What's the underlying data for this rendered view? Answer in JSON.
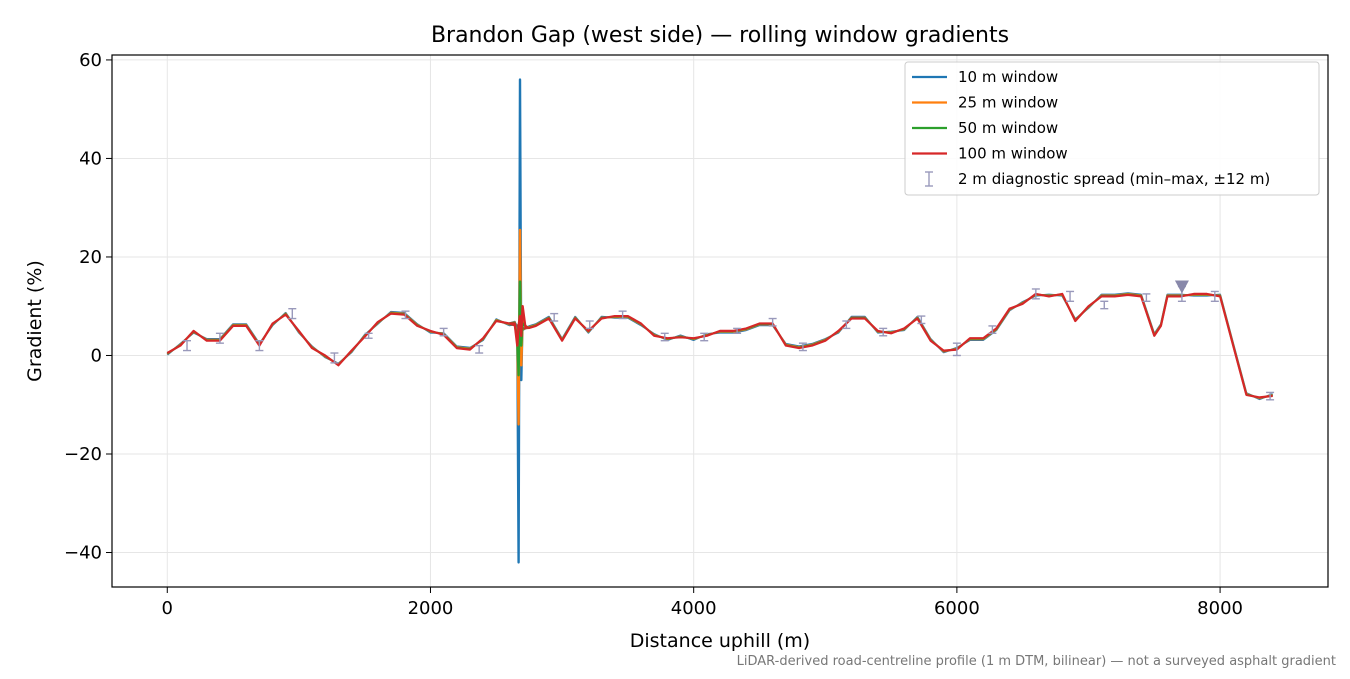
{
  "chart_data": {
    "type": "line",
    "title": "Brandon Gap (west side) — rolling window gradients",
    "xlabel": "Distance uphill (m)",
    "ylabel": "Gradient (%)",
    "xlim": [
      -420,
      8820
    ],
    "ylim": [
      -47,
      61
    ],
    "xticks": [
      0,
      2000,
      4000,
      6000,
      8000
    ],
    "yticks": [
      -40,
      -20,
      0,
      20,
      40,
      60
    ],
    "grid": true,
    "legend_position": "top-right",
    "footnote": "LiDAR-derived road-centreline profile (1 m DTM, bilinear) — not a surveyed asphalt gradient",
    "profile": {
      "x": [
        0,
        100,
        200,
        300,
        400,
        500,
        600,
        700,
        800,
        900,
        1000,
        1100,
        1200,
        1300,
        1400,
        1500,
        1600,
        1700,
        1800,
        1900,
        2000,
        2100,
        2200,
        2300,
        2400,
        2500,
        2600,
        2650,
        2700,
        2750,
        2800,
        2900,
        3000,
        3100,
        3200,
        3300,
        3400,
        3500,
        3600,
        3700,
        3800,
        3900,
        4000,
        4100,
        4200,
        4300,
        4400,
        4500,
        4600,
        4700,
        4800,
        4900,
        5000,
        5100,
        5200,
        5300,
        5400,
        5500,
        5600,
        5700,
        5800,
        5900,
        6000,
        6100,
        6200,
        6300,
        6400,
        6500,
        6600,
        6700,
        6800,
        6900,
        7000,
        7100,
        7200,
        7300,
        7400,
        7500,
        7550,
        7600,
        7700,
        7800,
        7900,
        8000,
        8100,
        8200,
        8300,
        8400
      ],
      "y": [
        0.5,
        2,
        5,
        3,
        3,
        6,
        6,
        2,
        6.5,
        8.3,
        5,
        1.5,
        0,
        -2,
        1,
        3.8,
        6.8,
        8.5,
        8.3,
        6,
        5,
        4.2,
        1.5,
        1.2,
        3.5,
        7,
        6.5,
        6,
        5.5,
        5.6,
        6,
        7.5,
        3,
        7.5,
        5,
        7.5,
        8,
        8,
        6.5,
        4,
        3.5,
        3.7,
        3.5,
        4,
        5,
        5,
        5.5,
        6.5,
        6.5,
        2,
        1.5,
        2,
        3,
        5,
        7.5,
        7.5,
        5,
        4.5,
        5.5,
        7.5,
        3,
        1,
        1.2,
        3.5,
        3.5,
        5.5,
        9.5,
        10.5,
        12.5,
        12,
        12.5,
        7,
        10,
        12,
        12,
        12.3,
        12,
        4,
        6,
        12,
        12,
        12.5,
        12.5,
        12,
        2,
        -8,
        -8.5,
        -8.2
      ]
    },
    "spike": {
      "x": [
        2600,
        2640,
        2660,
        2670,
        2680,
        2690,
        2700,
        2720,
        2740
      ],
      "series": [
        {
          "name": "10 m window",
          "values": [
            6.5,
            6.8,
            5,
            -42,
            56,
            -5,
            8,
            6,
            5.6
          ]
        },
        {
          "name": "25 m window",
          "values": [
            6.5,
            6.7,
            4,
            -14,
            25.5,
            -2,
            7,
            6,
            5.6
          ]
        },
        {
          "name": "50 m window",
          "values": [
            6.5,
            6.6,
            3,
            -4,
            15,
            2,
            6.5,
            6,
            5.6
          ]
        },
        {
          "name": "100 m window",
          "values": [
            6.5,
            6.5,
            2,
            6,
            8,
            4,
            10,
            6,
            5.6
          ]
        }
      ]
    },
    "series_styles": [
      {
        "name": "10 m window",
        "color": "#1f77b4"
      },
      {
        "name": "25 m window",
        "color": "#ff7f0e"
      },
      {
        "name": "50 m window",
        "color": "#2ca02c"
      },
      {
        "name": "100 m window",
        "color": "#d62728"
      }
    ],
    "diagnostic_spread": {
      "name": "2 m diagnostic spread (min–max, ±12 m)",
      "color": "#9999bb",
      "x": [
        150,
        400,
        700,
        950,
        1270,
        1530,
        1810,
        2100,
        2370,
        2940,
        3210,
        3460,
        3780,
        4080,
        4330,
        4600,
        4830,
        5160,
        5440,
        5730,
        6000,
        6270,
        6600,
        6860,
        7120,
        7440,
        7710,
        7960,
        8380
      ],
      "ymin": [
        1,
        2.5,
        1,
        7.5,
        -1.5,
        3.5,
        7.5,
        4,
        0.5,
        7,
        5.5,
        7.5,
        3,
        3,
        4.5,
        6,
        1,
        5.5,
        4,
        6.5,
        0,
        4.5,
        11.5,
        11,
        9.5,
        11,
        11,
        11,
        -9
      ],
      "ymax": [
        3,
        4.5,
        3,
        9.5,
        0.5,
        4.5,
        9,
        5.5,
        2,
        8.5,
        7,
        9,
        4.5,
        4.5,
        5.5,
        7.5,
        2.5,
        7,
        5.5,
        8,
        2.5,
        6,
        13.5,
        13,
        11,
        12.5,
        14,
        13,
        -7.5
      ]
    },
    "marker": {
      "x": 7710,
      "y": 14,
      "color": "#8888aa",
      "shape": "triangle-down"
    }
  }
}
